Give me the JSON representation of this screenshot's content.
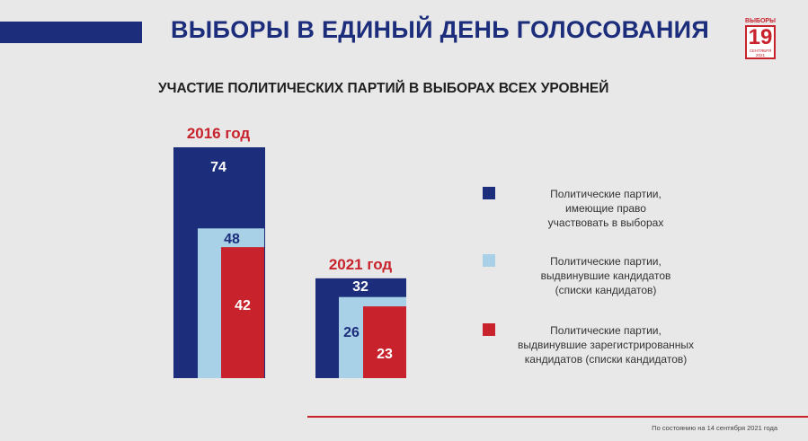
{
  "header": {
    "title": "ВЫБОРЫ В ЕДИНЫЙ ДЕНЬ ГОЛОСОВАНИЯ",
    "logo_top": "ВЫБОРЫ",
    "logo_number": "19",
    "logo_sub": "СЕНТЯБРЯ 2021"
  },
  "subtitle": "УЧАСТИЕ ПОЛИТИЧЕСКИХ ПАРТИЙ В ВЫБОРАХ ВСЕХ УРОВНЕЙ",
  "colors": {
    "navy": "#1b2d7b",
    "light_blue": "#a8d0e6",
    "red": "#c8222c",
    "year_label": "#c8222c"
  },
  "chart_data": {
    "type": "bar",
    "categories": [
      "2016 год",
      "2021 год"
    ],
    "series": [
      {
        "name": "Политические партии, имеющие право участвовать в выборах",
        "values": [
          74,
          32
        ],
        "color": "#1b2d7b"
      },
      {
        "name": "Политические партии, выдвинувшие кандидатов (списки кандидатов)",
        "values": [
          48,
          26
        ],
        "color": "#a8d0e6"
      },
      {
        "name": "Политические партии, выдвинувшие зарегистрированных кандидатов (списки кандидатов)",
        "values": [
          42,
          23
        ],
        "color": "#c8222c"
      }
    ],
    "title": "УЧАСТИЕ ПОЛИТИЧЕСКИХ ПАРТИЙ В ВЫБОРАХ ВСЕХ УРОВНЕЙ",
    "layout": "nested overlapping bars",
    "legend_position": "right",
    "grid": false,
    "axes_visible": false
  },
  "legend": [
    {
      "text_lines": [
        "Политические партии,",
        "имеющие право",
        "участвовать в выборах"
      ],
      "color": "#1b2d7b"
    },
    {
      "text_lines": [
        "Политические партии,",
        "выдвинувшие кандидатов",
        "(списки кандидатов)"
      ],
      "color": "#a8d0e6"
    },
    {
      "text_lines": [
        "Политические партии,",
        "выдвинувшие зарегистрированных",
        "кандидатов (списки кандидатов)"
      ],
      "color": "#c8222c"
    }
  ],
  "footnote": "По состоянию на 14 сентября 2021 года"
}
